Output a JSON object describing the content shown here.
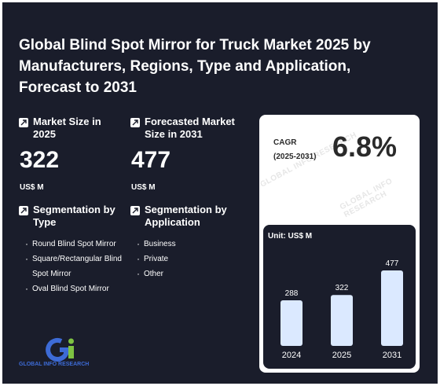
{
  "title": "Global Blind Spot Mirror for Truck Market 2025 by Manufacturers, Regions, Type and Application, Forecast to 2031",
  "market_size": {
    "label": "Market Size in 2025",
    "value": "322",
    "unit": "US$ M"
  },
  "forecast_size": {
    "label": "Forecasted Market Size in 2031",
    "value": "477",
    "unit": "US$ M"
  },
  "segmentation_type": {
    "label": "Segmentation by Type",
    "items": [
      "Round Blind Spot Mirror",
      "Square/Rectangular Blind Spot Mirror",
      "Oval Blind Spot Mirror"
    ]
  },
  "segmentation_application": {
    "label": "Segmentation by Application",
    "items": [
      "Business",
      "Private",
      "Other"
    ]
  },
  "cagr": {
    "label": "CAGR",
    "period": "(2025-2031)",
    "value": "6.8%"
  },
  "watermark": "GLOBAL INFO RESEARCH",
  "logo_text": "GLOBAL INFO RESEARCH",
  "colors": {
    "background": "#1a1d2b",
    "bar": "#dbe9ff",
    "logo_blue": "#3d6bd6",
    "logo_green": "#7dc242"
  },
  "chart_data": {
    "type": "bar",
    "unit_label": "Unit: US$ M",
    "categories": [
      "2024",
      "2025",
      "2031"
    ],
    "values": [
      288,
      322,
      477
    ],
    "ylim": [
      0,
      500
    ],
    "grid": false
  }
}
